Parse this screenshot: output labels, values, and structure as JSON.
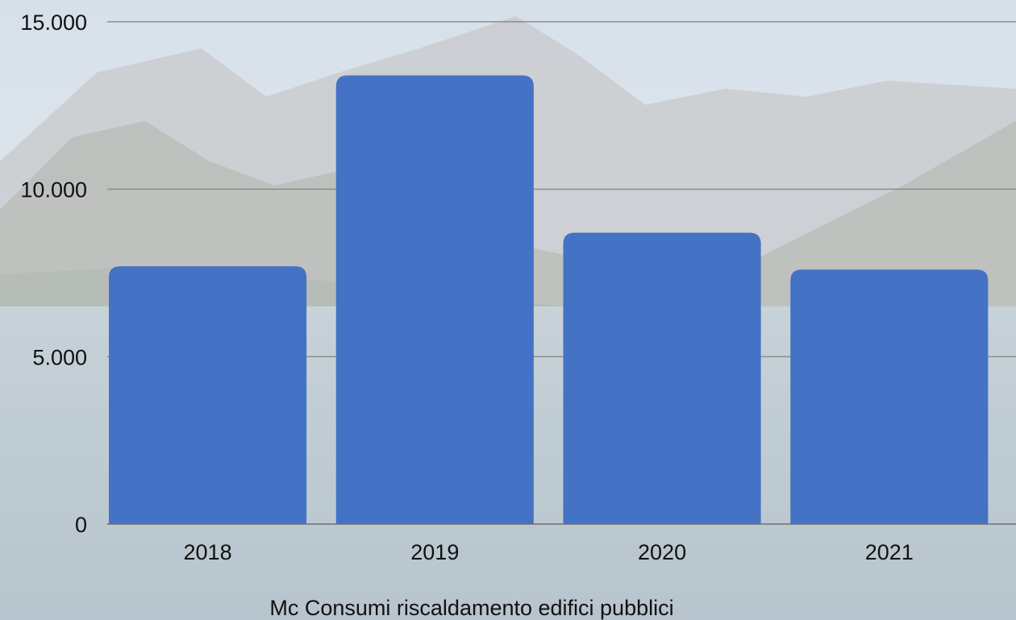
{
  "colors": {
    "bar": "#4472c4",
    "grid": "#8c8c8c",
    "axis": "#6e6e6e",
    "text": "#111111",
    "sky_top": "#c9d6e2",
    "sky_mid": "#e6ebee",
    "mountain_far": "#b9bcc1",
    "mountain_near": "#9ea39a",
    "lake": "#aebfca",
    "lake_deep": "#9fb2bf"
  },
  "background": {
    "description_icon": "lake-mountain-photo"
  },
  "chart_data": {
    "type": "bar",
    "categories": [
      "2018",
      "2019",
      "2020",
      "2021"
    ],
    "values": [
      7700,
      13400,
      8700,
      7600
    ],
    "title": "Mc Consumi riscaldamento edifici pubblici",
    "xlabel": "",
    "ylabel": "",
    "ylim": [
      0,
      15000
    ],
    "yticks": [
      0,
      5000,
      10000,
      15000
    ],
    "ytick_labels": [
      "0",
      "5.000",
      "10.000",
      "15.000"
    ],
    "grid": true,
    "legend": "none"
  }
}
